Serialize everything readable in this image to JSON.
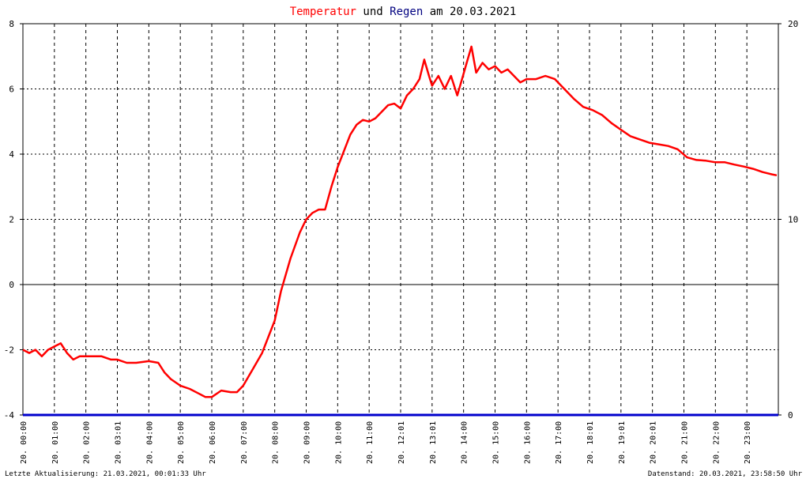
{
  "title_parts": {
    "temp": "Temperatur",
    "und": " und ",
    "rain": "Regen",
    "am": " am ",
    "date": "20.03.2021"
  },
  "colors": {
    "temperature": "#ff0000",
    "rain": "#0000cc",
    "title_dark": "#000080",
    "grid": "#000000",
    "background": "#ffffff"
  },
  "footer": {
    "left": "Letzte Aktualisierung: 21.03.2021, 00:01:33 Uhr",
    "right": "Datenstand: 20.03.2021, 23:58:50 Uhr"
  },
  "chart_data": {
    "type": "line",
    "x_unit": "hours",
    "xlim": [
      0,
      24
    ],
    "ylim_left": [
      -4,
      8
    ],
    "ylim_right": [
      0,
      20
    ],
    "left_ticks": [
      "-4",
      "-2",
      "0",
      "2",
      "4",
      "6",
      "8"
    ],
    "right_ticks": [
      "0",
      "10",
      "20"
    ],
    "x_tick_labels": [
      "20. 00:00",
      "20. 01:00",
      "20. 02:00",
      "20. 03:01",
      "20. 04:00",
      "20. 05:00",
      "20. 06:00",
      "20. 07:00",
      "20. 08:00",
      "20. 09:00",
      "20. 10:00",
      "20. 11:00",
      "20. 12:01",
      "20. 13:01",
      "20. 14:00",
      "20. 15:00",
      "20. 16:00",
      "20. 17:00",
      "20. 18:01",
      "20. 19:01",
      "20. 20:01",
      "20. 21:00",
      "20. 22:00",
      "20. 23:00"
    ],
    "grid": true,
    "series": [
      {
        "name": "Temperatur",
        "axis": "left",
        "color": "#ff0000",
        "x": [
          0,
          0.2,
          0.4,
          0.6,
          0.8,
          1.0,
          1.2,
          1.4,
          1.6,
          1.8,
          2.0,
          2.2,
          2.5,
          2.8,
          3.0,
          3.3,
          3.6,
          4.0,
          4.3,
          4.5,
          4.7,
          5.0,
          5.3,
          5.6,
          5.8,
          6.0,
          6.3,
          6.6,
          6.8,
          7.0,
          7.3,
          7.6,
          7.8,
          8.0,
          8.2,
          8.5,
          8.8,
          9.0,
          9.2,
          9.4,
          9.6,
          9.8,
          10.0,
          10.2,
          10.4,
          10.6,
          10.8,
          11.0,
          11.2,
          11.4,
          11.6,
          11.8,
          12.0,
          12.2,
          12.4,
          12.6,
          12.75,
          12.9,
          13.0,
          13.2,
          13.4,
          13.6,
          13.8,
          13.95,
          14.1,
          14.25,
          14.4,
          14.6,
          14.8,
          15.0,
          15.2,
          15.4,
          15.6,
          15.8,
          16.0,
          16.3,
          16.6,
          16.9,
          17.2,
          17.5,
          17.8,
          18.1,
          18.4,
          18.7,
          19.0,
          19.3,
          19.6,
          19.9,
          20.2,
          20.5,
          20.8,
          21.1,
          21.4,
          21.7,
          22.0,
          22.3,
          22.6,
          22.9,
          23.2,
          23.5,
          23.8,
          23.95
        ],
        "values": [
          -2.0,
          -2.1,
          -2.0,
          -2.2,
          -2.0,
          -1.9,
          -1.8,
          -2.1,
          -2.3,
          -2.2,
          -2.2,
          -2.2,
          -2.2,
          -2.3,
          -2.3,
          -2.4,
          -2.4,
          -2.35,
          -2.4,
          -2.7,
          -2.9,
          -3.1,
          -3.2,
          -3.35,
          -3.45,
          -3.45,
          -3.25,
          -3.3,
          -3.3,
          -3.1,
          -2.6,
          -2.1,
          -1.6,
          -1.1,
          -0.2,
          0.8,
          1.6,
          2.0,
          2.2,
          2.3,
          2.3,
          3.0,
          3.6,
          4.1,
          4.6,
          4.9,
          5.05,
          5.0,
          5.1,
          5.3,
          5.5,
          5.55,
          5.4,
          5.8,
          6.0,
          6.3,
          6.9,
          6.4,
          6.1,
          6.4,
          6.0,
          6.4,
          5.8,
          6.3,
          6.8,
          7.3,
          6.5,
          6.8,
          6.6,
          6.7,
          6.5,
          6.6,
          6.4,
          6.2,
          6.3,
          6.3,
          6.4,
          6.3,
          6.0,
          5.7,
          5.45,
          5.35,
          5.2,
          4.95,
          4.75,
          4.55,
          4.45,
          4.35,
          4.3,
          4.25,
          4.15,
          3.9,
          3.82,
          3.8,
          3.75,
          3.75,
          3.68,
          3.62,
          3.55,
          3.45,
          3.38,
          3.35
        ]
      },
      {
        "name": "Regen",
        "axis": "right",
        "color": "#0000cc",
        "x": [
          0,
          24
        ],
        "values": [
          0,
          0
        ]
      }
    ]
  }
}
